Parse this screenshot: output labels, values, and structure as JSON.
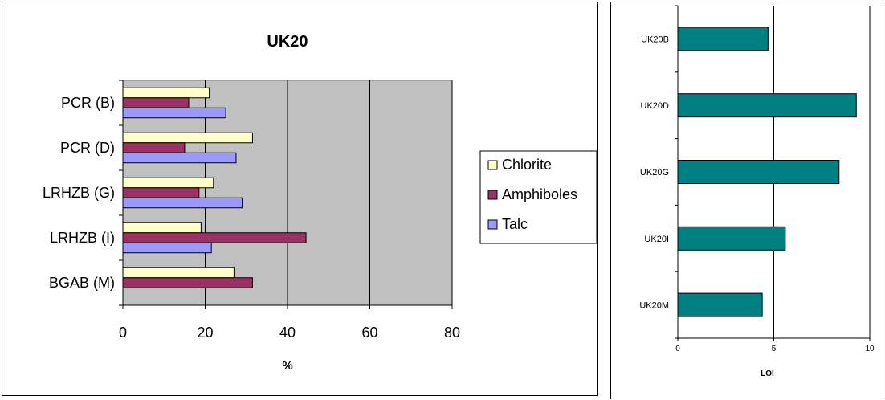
{
  "chart_data": [
    {
      "type": "bar",
      "orientation": "horizontal",
      "title": "UK20",
      "xlabel": "%",
      "ylabel": "",
      "xlim": [
        0,
        80
      ],
      "xticks": [
        0,
        20,
        40,
        60,
        80
      ],
      "categories": [
        "PCR (B)",
        "PCR (D)",
        "LRHZB (G)",
        "LRHZB (I)",
        "BGAB (M)"
      ],
      "series": [
        {
          "name": "Chlorite",
          "color": "#ffffcc",
          "values": [
            21,
            31.5,
            22,
            19,
            27
          ]
        },
        {
          "name": "Amphiboles",
          "color": "#993366",
          "values": [
            16,
            15,
            18.5,
            44.5,
            31.5
          ]
        },
        {
          "name": "Talc",
          "color": "#9999ff",
          "values": [
            25,
            27.5,
            29,
            21.5,
            null
          ]
        }
      ],
      "plot_background": "#c0c0c0",
      "grid": "vertical",
      "legend_position": "right"
    },
    {
      "type": "bar",
      "orientation": "horizontal",
      "title": "",
      "xlabel": "LOI",
      "ylabel": "",
      "xlim": [
        0,
        10
      ],
      "xticks": [
        0,
        5,
        10
      ],
      "categories": [
        "UK20B",
        "UK20D",
        "UK20G",
        "UK20I",
        "UK20M"
      ],
      "series": [
        {
          "color": "#008080",
          "values": [
            4.7,
            9.3,
            8.4,
            5.6,
            4.4
          ]
        }
      ],
      "plot_background": "#ffffff",
      "grid": "vertical"
    }
  ]
}
